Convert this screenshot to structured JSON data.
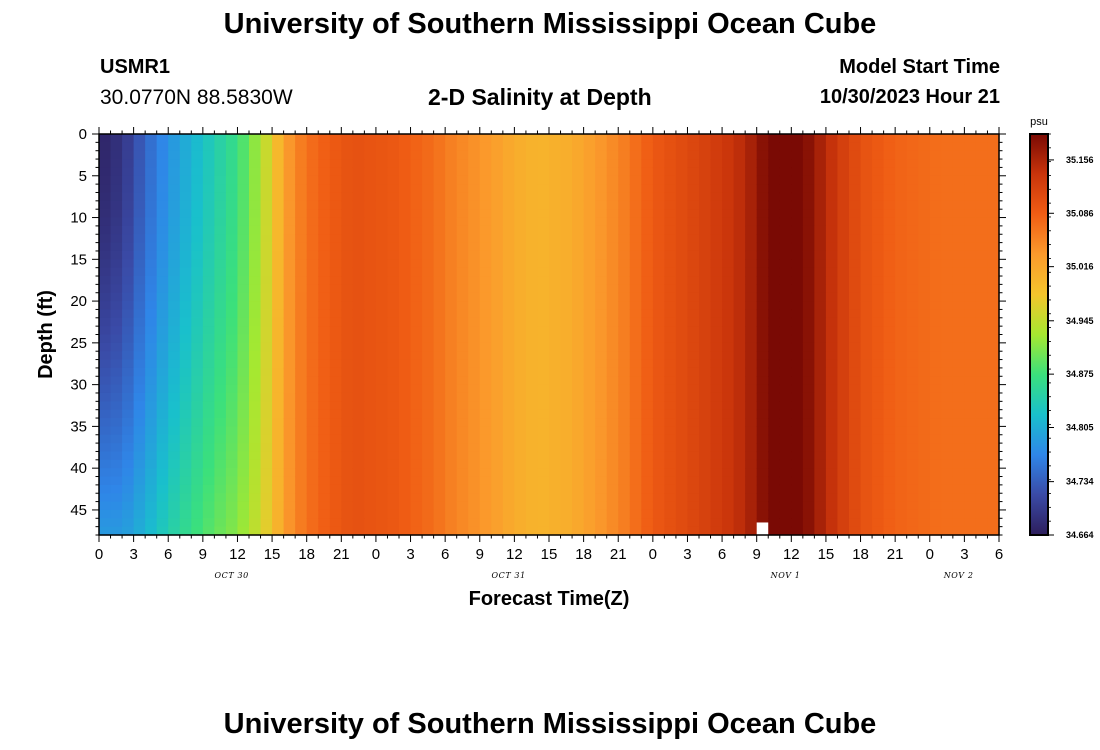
{
  "page": {
    "title": "University of Southern Mississippi Ocean Cube",
    "station_id": "USMR1",
    "coordinates": "30.0770N  88.5830W",
    "subtitle": "2-D Salinity at Depth",
    "model_start_label": "Model Start Time",
    "model_start_value": "10/30/2023 Hour 21",
    "footer_title": "University of Southern Mississippi Ocean Cube"
  },
  "chart_data": {
    "type": "heatmap",
    "title": "2-D Salinity at Depth",
    "xlabel": "Forecast Time(Z)",
    "ylabel": "Depth (ft)",
    "x_hours_range": [
      0,
      78
    ],
    "y_depth_range_ft": [
      0,
      48
    ],
    "y_reversed": true,
    "x_tick_hours": [
      0,
      3,
      6,
      9,
      12,
      15,
      18,
      21,
      24,
      27,
      30,
      33,
      36,
      39,
      42,
      45,
      48,
      51,
      54,
      57,
      60,
      63,
      66,
      69,
      72,
      75,
      78
    ],
    "x_tick_labels": [
      "0",
      "3",
      "6",
      "9",
      "12",
      "15",
      "18",
      "21",
      "0",
      "3",
      "6",
      "9",
      "12",
      "15",
      "18",
      "21",
      "0",
      "3",
      "6",
      "9",
      "12",
      "15",
      "18",
      "21",
      "0",
      "3",
      "6"
    ],
    "y_ticks": [
      0,
      5,
      10,
      15,
      20,
      25,
      30,
      35,
      40,
      45
    ],
    "date_labels": [
      {
        "text": "OCT 30",
        "hour": 11.5
      },
      {
        "text": "OCT 31",
        "hour": 35.5
      },
      {
        "text": "NOV 1",
        "hour": 59.5
      },
      {
        "text": "NOV 2",
        "hour": 74.5
      }
    ],
    "colorbar": {
      "unit": "psu",
      "min": 34.664,
      "max": 35.19,
      "tick_values": [
        35.156,
        35.086,
        35.016,
        34.945,
        34.875,
        34.805,
        34.734,
        34.664
      ],
      "tick_labels": [
        "35.156",
        "35.086",
        "35.016",
        "34.945",
        "34.875",
        "34.805",
        "34.734",
        "34.664"
      ],
      "colors": [
        "#2d1e5c",
        "#3a4aa6",
        "#2f86e8",
        "#19c0cc",
        "#3be07c",
        "#a6e830",
        "#f4c52c",
        "#fb9a2c",
        "#f05d14",
        "#c9340b",
        "#7a0a04"
      ]
    },
    "salinity_surface_profile": {
      "hours": [
        0,
        2,
        4,
        6,
        8,
        10,
        12,
        13,
        14,
        15,
        16,
        17,
        19,
        22,
        26,
        29,
        31,
        34,
        36,
        38,
        41,
        43,
        45,
        48,
        51,
        54,
        56,
        57,
        58,
        59,
        60,
        61,
        62,
        63,
        64,
        66,
        69,
        73,
        78
      ],
      "values": [
        34.67,
        34.69,
        34.74,
        34.78,
        34.81,
        34.84,
        34.87,
        34.9,
        34.93,
        34.97,
        35.02,
        35.05,
        35.08,
        35.1,
        35.09,
        35.07,
        35.05,
        35.03,
        35.01,
        35.0,
        35.01,
        35.03,
        35.05,
        35.09,
        35.11,
        35.13,
        35.15,
        35.17,
        35.19,
        35.2,
        35.2,
        35.19,
        35.17,
        35.15,
        35.13,
        35.1,
        35.08,
        35.07,
        35.07
      ]
    },
    "salinity_bottom_profile": {
      "hours": [
        0,
        2,
        4,
        6,
        8,
        10,
        12,
        14,
        16,
        18,
        20,
        22,
        26,
        78
      ],
      "values": [
        34.79,
        34.8,
        34.83,
        34.87,
        34.91,
        34.95,
        34.98,
        35.01,
        35.04,
        35.07,
        35.09,
        35.1,
        35.09,
        35.07
      ]
    },
    "missing_cells": [
      {
        "hour": 57.5,
        "depth_ft": 47
      }
    ]
  }
}
